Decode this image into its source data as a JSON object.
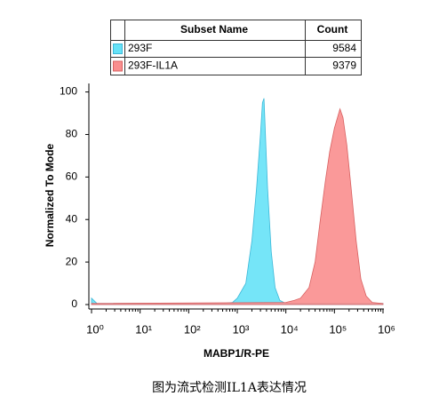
{
  "chart_data": {
    "type": "area",
    "x_label": "MABP1/R-PE",
    "y_label": "Normalized To Mode",
    "caption": "图为流式检测IL1A表达情况",
    "legend_columns": [
      "Subset Name",
      "Count"
    ],
    "xscale": "log",
    "xlim": [
      1,
      1000000
    ],
    "xticks": [
      {
        "value": 1,
        "label": "10⁰"
      },
      {
        "value": 10,
        "label": "10¹"
      },
      {
        "value": 100,
        "label": "10²"
      },
      {
        "value": 1000,
        "label": "10³"
      },
      {
        "value": 10000,
        "label": "10⁴"
      },
      {
        "value": 100000,
        "label": "10⁵"
      },
      {
        "value": 1000000,
        "label": "10⁶"
      }
    ],
    "ylim": [
      0,
      104
    ],
    "yticks": [
      0,
      20,
      40,
      60,
      80,
      100
    ],
    "series": [
      {
        "name": "293F",
        "count": "9584",
        "color": "#66e2f7",
        "stroke": "#3cb8d8",
        "x": [
          1,
          1.3,
          10,
          100,
          500,
          800,
          1000,
          1500,
          2000,
          2500,
          3000,
          3300,
          3550,
          3800,
          4200,
          5000,
          6000,
          7500,
          10000,
          30000,
          1000000
        ],
        "values": [
          3,
          0.5,
          0.5,
          0.5,
          0.5,
          1,
          3,
          10,
          30,
          55,
          80,
          95,
          97,
          80,
          55,
          25,
          8,
          2,
          0.5,
          0.5,
          0.5
        ]
      },
      {
        "name": "293F-IL1A",
        "count": "9379",
        "color": "#f98e8e",
        "stroke": "#d86060",
        "x": [
          1,
          10000,
          15000,
          20000,
          30000,
          40000,
          50000,
          65000,
          80000,
          100000,
          130000,
          150000,
          180000,
          220000,
          280000,
          350000,
          450000,
          600000,
          1000000
        ],
        "values": [
          0.5,
          1,
          2,
          3,
          8,
          20,
          38,
          58,
          72,
          83,
          92,
          88,
          75,
          55,
          30,
          12,
          4,
          1,
          0.5
        ]
      }
    ]
  }
}
